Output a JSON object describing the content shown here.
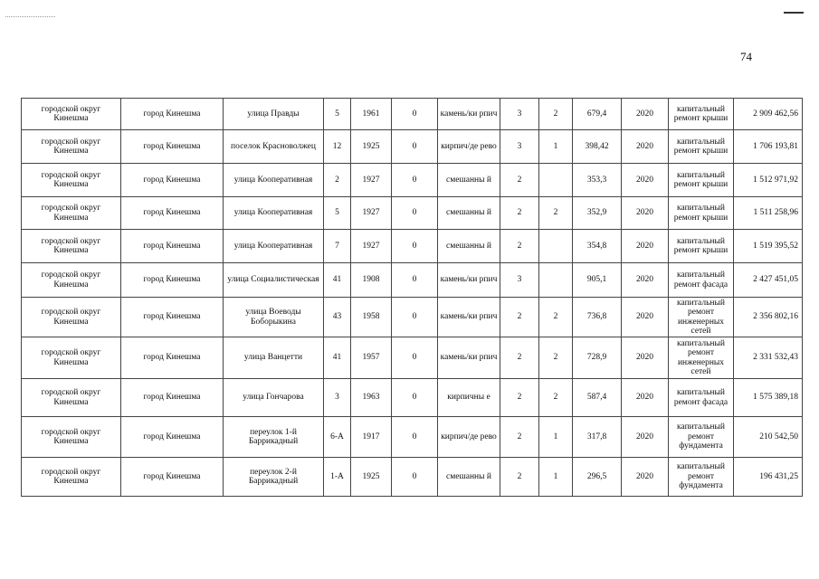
{
  "page_number": "74",
  "rows": [
    [
      "городской округ Кинешма",
      "город Кинешма",
      "улица Правды",
      "5",
      "1961",
      "0",
      "камень/ки рпич",
      "3",
      "2",
      "679,4",
      "2020",
      "капитальный ремонт крыши",
      "2 909 462,56"
    ],
    [
      "городской округ Кинешма",
      "город Кинешма",
      "поселок Красноволжец",
      "12",
      "1925",
      "0",
      "кирпич/де рево",
      "3",
      "1",
      "398,42",
      "2020",
      "капитальный ремонт крыши",
      "1 706 193,81"
    ],
    [
      "городской округ Кинешма",
      "город Кинешма",
      "улица Кооперативная",
      "2",
      "1927",
      "0",
      "смешанны й",
      "2",
      "",
      "353,3",
      "2020",
      "капитальный ремонт крыши",
      "1 512 971,92"
    ],
    [
      "городской округ Кинешма",
      "город Кинешма",
      "улица Кооперативная",
      "5",
      "1927",
      "0",
      "смешанны й",
      "2",
      "2",
      "352,9",
      "2020",
      "капитальный ремонт крыши",
      "1 511 258,96"
    ],
    [
      "городской округ Кинешма",
      "город Кинешма",
      "улица Кооперативная",
      "7",
      "1927",
      "0",
      "смешанны й",
      "2",
      "",
      "354,8",
      "2020",
      "капитальный ремонт крыши",
      "1 519 395,52"
    ],
    [
      "городской округ Кинешма",
      "город Кинешма",
      "улица Социалистическая",
      "41",
      "1908",
      "0",
      "камень/ки рпич",
      "3",
      "",
      "905,1",
      "2020",
      "капитальный ремонт фасада",
      "2 427 451,05"
    ],
    [
      "городской округ Кинешма",
      "город Кинешма",
      "улица Воеводы Боборыкина",
      "43",
      "1958",
      "0",
      "камень/ки рпич",
      "2",
      "2",
      "736,8",
      "2020",
      "капитальный ремонт инженерных сетей",
      "2 356 802,16"
    ],
    [
      "городской округ Кинешма",
      "город Кинешма",
      "улица Ванцетти",
      "41",
      "1957",
      "0",
      "камень/ки рпич",
      "2",
      "2",
      "728,9",
      "2020",
      "капитальный ремонт инженерных сетей",
      "2 331 532,43"
    ],
    [
      "городской округ Кинешма",
      "город Кинешма",
      "улица Гончарова",
      "3",
      "1963",
      "0",
      "кирпичны е",
      "2",
      "2",
      "587,4",
      "2020",
      "капитальный ремонт фасада",
      "1 575 389,18"
    ],
    [
      "городской округ Кинешма",
      "город Кинешма",
      "переулок 1-й Баррикадный",
      "6-А",
      "1917",
      "0",
      "кирпич/де рево",
      "2",
      "1",
      "317,8",
      "2020",
      "капитальный ремонт фундамента",
      "210 542,50"
    ],
    [
      "городской округ Кинешма",
      "город Кинешма",
      "переулок 2-й Баррикадный",
      "1-А",
      "1925",
      "0",
      "смешанны й",
      "2",
      "1",
      "296,5",
      "2020",
      "капитальный ремонт фундамента",
      "196 431,25"
    ]
  ]
}
